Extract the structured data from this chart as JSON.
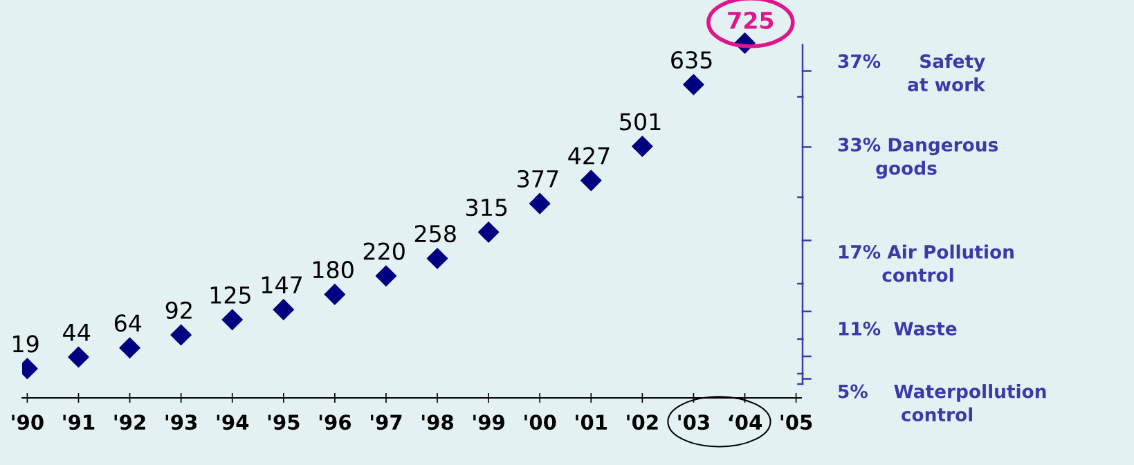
{
  "chart_data": {
    "type": "scatter",
    "categories": [
      "'90",
      "'91",
      "'92",
      "'93",
      "'94",
      "'95",
      "'96",
      "'97",
      "'98",
      "'99",
      "'00",
      "'01",
      "'02",
      "'03",
      "‘04",
      "'05"
    ],
    "series": [
      {
        "color": "#000080",
        "values": [
          19,
          44,
          64,
          92,
          125,
          147,
          180,
          220,
          258,
          315,
          377,
          427,
          501,
          635,
          725,
          null
        ],
        "value_labels": [
          "19",
          "44",
          "64",
          "92",
          "125",
          "147",
          "180",
          "220",
          "258",
          "315",
          "377",
          "427",
          "501",
          "635",
          null,
          null
        ]
      }
    ],
    "marker": "diamond",
    "tick_labels": "x",
    "grid": false,
    "legend": false,
    "annotations": [
      {
        "text": "725",
        "x": "‘04",
        "y": 725
      },
      "37%      Safety\n           at work",
      "33% Dangerous\n      goods",
      "17% Air Pollution\n       control",
      "11%  Waste",
      "5%    Waterpollution\n          control"
    ]
  }
}
